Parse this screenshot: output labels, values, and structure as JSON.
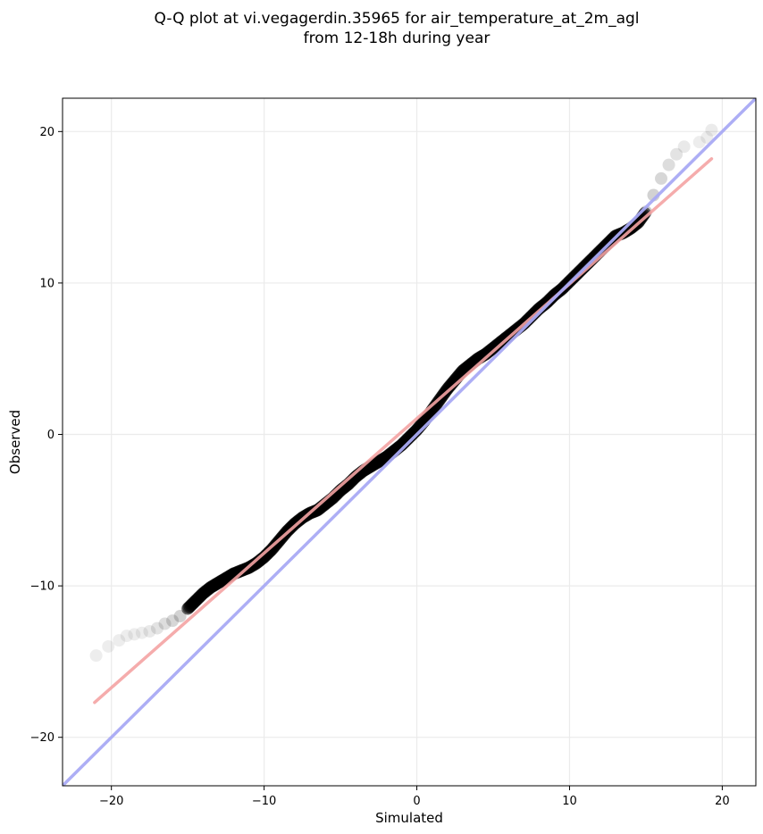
{
  "chart_data": {
    "type": "scatter",
    "title_line1": "Q-Q plot at vi.vegagerdin.35965 for air_temperature_at_2m_agl",
    "title_line2": "from 12-18h during year",
    "xlabel": "Simulated",
    "ylabel": "Observed",
    "xlim": [
      -23.2,
      22.2
    ],
    "ylim": [
      -23.2,
      22.2
    ],
    "xticks": [
      -20,
      -10,
      0,
      10,
      20
    ],
    "yticks": [
      -20,
      -10,
      0,
      10,
      20
    ],
    "xtick_labels": [
      "−20",
      "−10",
      "0",
      "10",
      "20"
    ],
    "ytick_labels": [
      "−20",
      "−10",
      "0",
      "10",
      "20"
    ],
    "grid": true,
    "points_color": "#000000",
    "fit_line_color": "#f4a3a3",
    "identity_line_color": "#a9aaf4",
    "quantiles": [
      [
        -21.0,
        -14.6
      ],
      [
        -20.2,
        -14.0
      ],
      [
        -19.5,
        -13.6
      ],
      [
        -19.0,
        -13.3
      ],
      [
        -18.5,
        -13.2
      ],
      [
        -18.0,
        -13.1
      ],
      [
        -17.5,
        -13.0
      ],
      [
        -17.0,
        -12.8
      ],
      [
        -16.5,
        -12.5
      ],
      [
        -16.0,
        -12.3
      ],
      [
        -15.5,
        -12.0
      ],
      [
        -15.0,
        -11.5
      ],
      [
        -14.5,
        -11.0
      ],
      [
        -14.0,
        -10.5
      ],
      [
        -13.5,
        -10.1
      ],
      [
        -13.0,
        -9.8
      ],
      [
        -12.5,
        -9.5
      ],
      [
        -12.0,
        -9.2
      ],
      [
        -11.5,
        -9.0
      ],
      [
        -11.0,
        -8.8
      ],
      [
        -10.5,
        -8.5
      ],
      [
        -10.0,
        -8.1
      ],
      [
        -9.5,
        -7.6
      ],
      [
        -9.0,
        -7.0
      ],
      [
        -8.5,
        -6.4
      ],
      [
        -8.0,
        -5.9
      ],
      [
        -7.5,
        -5.5
      ],
      [
        -7.0,
        -5.2
      ],
      [
        -6.5,
        -5.0
      ],
      [
        -6.0,
        -4.6
      ],
      [
        -5.5,
        -4.2
      ],
      [
        -5.0,
        -3.7
      ],
      [
        -4.5,
        -3.3
      ],
      [
        -4.0,
        -2.8
      ],
      [
        -3.5,
        -2.4
      ],
      [
        -3.0,
        -2.1
      ],
      [
        -2.5,
        -1.8
      ],
      [
        -2.0,
        -1.5
      ],
      [
        -1.5,
        -1.1
      ],
      [
        -1.0,
        -0.7
      ],
      [
        -0.5,
        -0.2
      ],
      [
        0.0,
        0.3
      ],
      [
        0.5,
        0.9
      ],
      [
        1.0,
        1.6
      ],
      [
        1.5,
        2.3
      ],
      [
        2.0,
        3.0
      ],
      [
        2.5,
        3.6
      ],
      [
        3.0,
        4.2
      ],
      [
        3.5,
        4.6
      ],
      [
        4.0,
        5.0
      ],
      [
        4.5,
        5.3
      ],
      [
        5.0,
        5.7
      ],
      [
        5.5,
        6.1
      ],
      [
        6.0,
        6.5
      ],
      [
        6.5,
        6.9
      ],
      [
        7.0,
        7.3
      ],
      [
        7.5,
        7.8
      ],
      [
        8.0,
        8.3
      ],
      [
        8.5,
        8.7
      ],
      [
        9.0,
        9.2
      ],
      [
        9.5,
        9.6
      ],
      [
        10.0,
        10.1
      ],
      [
        10.5,
        10.6
      ],
      [
        11.0,
        11.1
      ],
      [
        11.5,
        11.6
      ],
      [
        12.0,
        12.1
      ],
      [
        12.5,
        12.6
      ],
      [
        13.0,
        13.1
      ],
      [
        13.5,
        13.3
      ],
      [
        14.0,
        13.6
      ],
      [
        14.5,
        14.0
      ],
      [
        15.0,
        14.7
      ],
      [
        15.5,
        15.8
      ],
      [
        16.0,
        16.9
      ],
      [
        16.5,
        17.8
      ],
      [
        17.0,
        18.5
      ],
      [
        17.5,
        19.0
      ],
      [
        18.5,
        19.3
      ],
      [
        19.0,
        19.6
      ],
      [
        19.3,
        20.1
      ]
    ],
    "fit_line": [
      [
        -21.1,
        -17.7
      ],
      [
        19.3,
        18.2
      ]
    ],
    "identity_line": [
      [
        -23.2,
        -23.2
      ],
      [
        22.2,
        22.2
      ]
    ]
  }
}
